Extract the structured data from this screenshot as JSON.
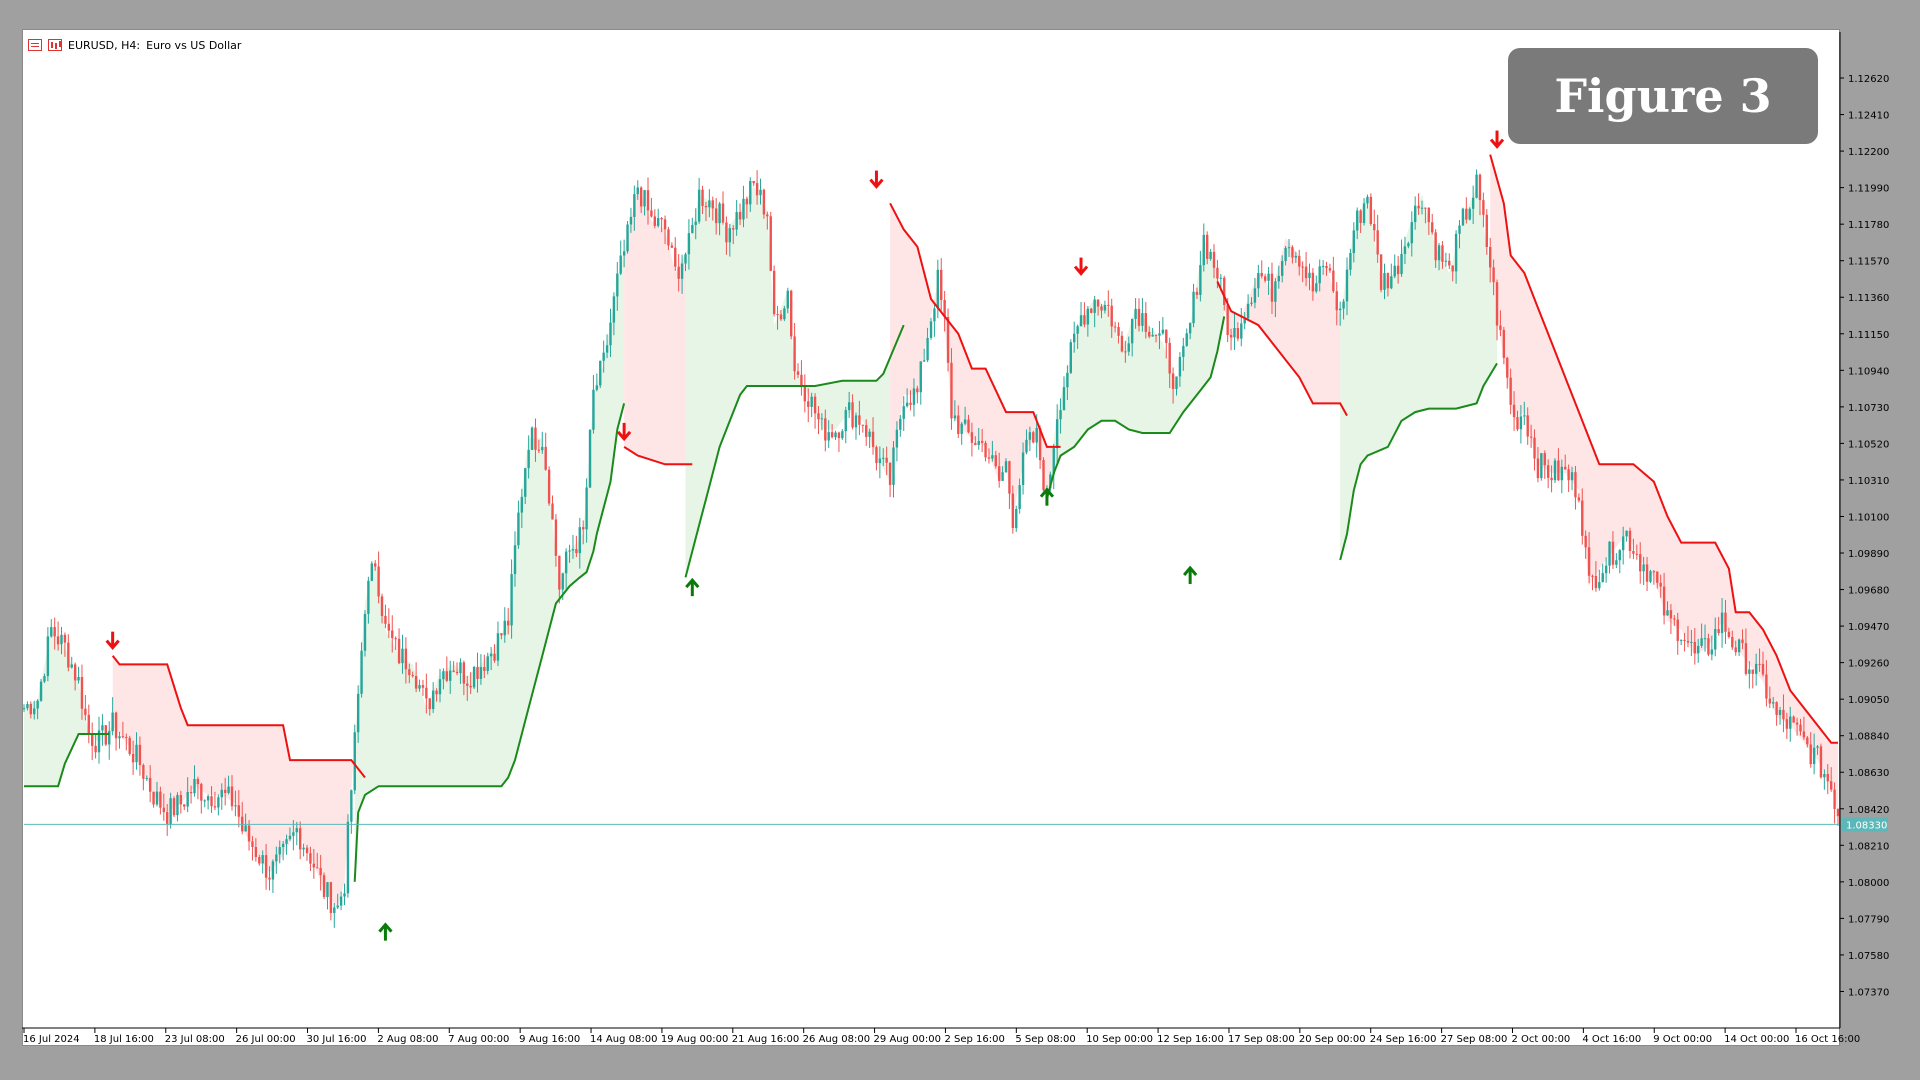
{
  "header": {
    "symbol": "EURUSD, H4:",
    "description": "Euro vs US Dollar"
  },
  "badge": {
    "text": "Figure 3"
  },
  "colors": {
    "up_candle": "#26a69a",
    "down_candle": "#ef5350",
    "supertrend_up": "#1a8a1a",
    "supertrend_down": "#ee1111",
    "fill_up": "#e6f5e6",
    "fill_down": "#ffe6e6",
    "arrow_up": "#0a7a0a",
    "arrow_down": "#ee1111",
    "price_line": "#5cb8b8"
  },
  "chart_data": {
    "type": "candlestick",
    "title": "EURUSD, H4: Euro vs US Dollar",
    "ylim": [
      1.0716,
      1.1285
    ],
    "y_ticks": [
      "1.12620",
      "1.12410",
      "1.12200",
      "1.11990",
      "1.11780",
      "1.11570",
      "1.11360",
      "1.11150",
      "1.10940",
      "1.10730",
      "1.10520",
      "1.10310",
      "1.10100",
      "1.09890",
      "1.09680",
      "1.09470",
      "1.09260",
      "1.09050",
      "1.08840",
      "1.08630",
      "1.08420",
      "1.08210",
      "1.08000",
      "1.07790",
      "1.07580",
      "1.07370"
    ],
    "x_ticks": [
      "16 Jul 2024",
      "18 Jul 16:00",
      "23 Jul 08:00",
      "26 Jul 00:00",
      "30 Jul 16:00",
      "2 Aug 08:00",
      "7 Aug 00:00",
      "9 Aug 16:00",
      "14 Aug 08:00",
      "19 Aug 00:00",
      "21 Aug 16:00",
      "26 Aug 08:00",
      "29 Aug 00:00",
      "2 Sep 16:00",
      "5 Sep 08:00",
      "10 Sep 00:00",
      "12 Sep 16:00",
      "17 Sep 08:00",
      "20 Sep 00:00",
      "24 Sep 16:00",
      "27 Sep 08:00",
      "2 Oct 00:00",
      "4 Oct 16:00",
      "9 Oct 00:00",
      "14 Oct 00:00",
      "16 Oct 16:00"
    ],
    "current_price": {
      "value": 1.0833,
      "label": "1.08330"
    },
    "close_path": [
      [
        0,
        1.09
      ],
      [
        4,
        1.0905
      ],
      [
        8,
        1.0945
      ],
      [
        12,
        1.0935
      ],
      [
        16,
        1.0915
      ],
      [
        19,
        1.0885
      ],
      [
        22,
        1.088
      ],
      [
        26,
        1.089
      ],
      [
        30,
        1.088
      ],
      [
        34,
        1.0868
      ],
      [
        38,
        1.085
      ],
      [
        42,
        1.084
      ],
      [
        46,
        1.0845
      ],
      [
        50,
        1.0855
      ],
      [
        54,
        1.085
      ],
      [
        58,
        1.085
      ],
      [
        62,
        1.0845
      ],
      [
        64,
        1.083
      ],
      [
        68,
        1.0818
      ],
      [
        72,
        1.0805
      ],
      [
        76,
        1.0815
      ],
      [
        80,
        1.083
      ],
      [
        84,
        1.0815
      ],
      [
        88,
        1.0795
      ],
      [
        92,
        1.0785
      ],
      [
        94,
        1.08
      ],
      [
        97,
        1.088
      ],
      [
        100,
        1.096
      ],
      [
        103,
        1.0985
      ],
      [
        106,
        1.0945
      ],
      [
        110,
        1.093
      ],
      [
        114,
        1.0925
      ],
      [
        118,
        1.09
      ],
      [
        122,
        1.092
      ],
      [
        126,
        1.0925
      ],
      [
        130,
        1.0918
      ],
      [
        134,
        1.0925
      ],
      [
        138,
        1.0935
      ],
      [
        142,
        1.095
      ],
      [
        145,
        1.101
      ],
      [
        148,
        1.1055
      ],
      [
        152,
        1.1055
      ],
      [
        154,
        1.1025
      ],
      [
        157,
        1.097
      ],
      [
        160,
        1.099
      ],
      [
        164,
        1.1
      ],
      [
        167,
        1.108
      ],
      [
        170,
        1.1098
      ],
      [
        174,
        1.1145
      ],
      [
        177,
        1.117
      ],
      [
        180,
        1.12
      ],
      [
        184,
        1.118
      ],
      [
        188,
        1.1175
      ],
      [
        191,
        1.115
      ],
      [
        195,
        1.1165
      ],
      [
        198,
        1.1195
      ],
      [
        202,
        1.119
      ],
      [
        206,
        1.1175
      ],
      [
        210,
        1.1185
      ],
      [
        214,
        1.12
      ],
      [
        218,
        1.1185
      ],
      [
        220,
        1.112
      ],
      [
        224,
        1.114
      ],
      [
        226,
        1.1095
      ],
      [
        230,
        1.108
      ],
      [
        234,
        1.106
      ],
      [
        238,
        1.106
      ],
      [
        242,
        1.107
      ],
      [
        246,
        1.1065
      ],
      [
        250,
        1.1045
      ],
      [
        254,
        1.103
      ],
      [
        258,
        1.108
      ],
      [
        262,
        1.108
      ],
      [
        265,
        1.1115
      ],
      [
        268,
        1.1145
      ],
      [
        270,
        1.112
      ],
      [
        272,
        1.107
      ],
      [
        275,
        1.106
      ],
      [
        278,
        1.1055
      ],
      [
        282,
        1.105
      ],
      [
        286,
        1.103
      ],
      [
        288,
        1.104
      ],
      [
        290,
        1.101
      ],
      [
        294,
        1.105
      ],
      [
        297,
        1.1055
      ],
      [
        300,
        1.102
      ],
      [
        303,
        1.107
      ],
      [
        306,
        1.1095
      ],
      [
        310,
        1.1125
      ],
      [
        314,
        1.1135
      ],
      [
        318,
        1.113
      ],
      [
        322,
        1.1105
      ],
      [
        326,
        1.113
      ],
      [
        330,
        1.112
      ],
      [
        334,
        1.111
      ],
      [
        338,
        1.1085
      ],
      [
        342,
        1.112
      ],
      [
        346,
        1.117
      ],
      [
        350,
        1.115
      ],
      [
        354,
        1.111
      ],
      [
        358,
        1.113
      ],
      [
        362,
        1.115
      ],
      [
        366,
        1.114
      ],
      [
        370,
        1.117
      ],
      [
        374,
        1.116
      ],
      [
        378,
        1.114
      ],
      [
        382,
        1.1155
      ],
      [
        386,
        1.1125
      ],
      [
        390,
        1.1175
      ],
      [
        394,
        1.1195
      ],
      [
        398,
        1.1145
      ],
      [
        402,
        1.115
      ],
      [
        406,
        1.1175
      ],
      [
        410,
        1.1195
      ],
      [
        414,
        1.1165
      ],
      [
        418,
        1.115
      ],
      [
        422,
        1.118
      ],
      [
        426,
        1.12
      ],
      [
        430,
        1.1155
      ],
      [
        432,
        1.1125
      ],
      [
        434,
        1.11
      ],
      [
        437,
        1.1065
      ],
      [
        440,
        1.107
      ],
      [
        444,
        1.104
      ],
      [
        448,
        1.1035
      ],
      [
        452,
        1.1035
      ],
      [
        456,
        1.1025
      ],
      [
        459,
        1.097
      ],
      [
        462,
        1.098
      ],
      [
        466,
        1.099
      ],
      [
        470,
        1.1
      ],
      [
        474,
        1.0985
      ],
      [
        478,
        1.0975
      ],
      [
        482,
        1.095
      ],
      [
        486,
        1.0945
      ],
      [
        490,
        1.093
      ],
      [
        494,
        1.0935
      ],
      [
        498,
        1.095
      ],
      [
        502,
        1.0935
      ],
      [
        506,
        1.0925
      ],
      [
        510,
        1.0915
      ],
      [
        514,
        1.0895
      ],
      [
        518,
        1.089
      ],
      [
        522,
        1.088
      ],
      [
        526,
        1.087
      ],
      [
        530,
        1.0855
      ],
      [
        532,
        1.084
      ]
    ],
    "supertrend_segments": [
      {
        "trend": "up",
        "start": 0,
        "end": 26,
        "points": [
          [
            0,
            1.0855
          ],
          [
            10,
            1.0855
          ],
          [
            12,
            1.0868
          ],
          [
            16,
            1.0885
          ],
          [
            25,
            1.0885
          ]
        ]
      },
      {
        "trend": "down",
        "start": 26,
        "end": 106,
        "points": [
          [
            26,
            1.093
          ],
          [
            28,
            1.0925
          ],
          [
            42,
            1.0925
          ],
          [
            46,
            1.09
          ],
          [
            48,
            1.089
          ],
          [
            76,
            1.089
          ],
          [
            78,
            1.087
          ],
          [
            96,
            1.087
          ],
          [
            100,
            1.086
          ]
        ]
      },
      {
        "trend": "up",
        "start": 97,
        "end": 176,
        "points": [
          [
            97,
            1.08
          ],
          [
            98,
            1.084
          ],
          [
            100,
            1.085
          ],
          [
            104,
            1.0855
          ],
          [
            140,
            1.0855
          ],
          [
            142,
            1.086
          ],
          [
            144,
            1.087
          ],
          [
            148,
            1.09
          ],
          [
            152,
            1.093
          ],
          [
            156,
            1.096
          ],
          [
            160,
            1.097
          ],
          [
            163,
            1.0975
          ],
          [
            165,
            1.0978
          ],
          [
            167,
            1.099
          ],
          [
            168,
            1.1
          ],
          [
            172,
            1.103
          ],
          [
            174,
            1.106
          ],
          [
            176,
            1.1075
          ]
        ]
      },
      {
        "trend": "down",
        "start": 176,
        "end": 196,
        "points": [
          [
            176,
            1.105
          ],
          [
            180,
            1.1045
          ],
          [
            188,
            1.104
          ],
          [
            196,
            1.104
          ]
        ]
      },
      {
        "trend": "up",
        "start": 194,
        "end": 258,
        "points": [
          [
            194,
            1.0975
          ],
          [
            196,
            1.099
          ],
          [
            198,
            1.1005
          ],
          [
            200,
            1.102
          ],
          [
            204,
            1.105
          ],
          [
            206,
            1.106
          ],
          [
            210,
            1.108
          ],
          [
            212,
            1.1085
          ],
          [
            220,
            1.1085
          ],
          [
            232,
            1.1085
          ],
          [
            240,
            1.1088
          ],
          [
            250,
            1.1088
          ],
          [
            252,
            1.1092
          ],
          [
            258,
            1.112
          ]
        ]
      },
      {
        "trend": "down",
        "start": 254,
        "end": 304,
        "points": [
          [
            254,
            1.119
          ],
          [
            258,
            1.1175
          ],
          [
            262,
            1.1165
          ],
          [
            266,
            1.1135
          ],
          [
            270,
            1.1125
          ],
          [
            274,
            1.1115
          ],
          [
            278,
            1.1095
          ],
          [
            282,
            1.1095
          ],
          [
            288,
            1.107
          ],
          [
            296,
            1.107
          ],
          [
            300,
            1.105
          ],
          [
            304,
            1.105
          ]
        ]
      },
      {
        "trend": "up",
        "start": 300,
        "end": 352,
        "points": [
          [
            300,
            1.102
          ],
          [
            302,
            1.1035
          ],
          [
            304,
            1.1045
          ],
          [
            308,
            1.105
          ],
          [
            312,
            1.106
          ],
          [
            316,
            1.1065
          ],
          [
            320,
            1.1065
          ],
          [
            324,
            1.106
          ],
          [
            328,
            1.1058
          ],
          [
            336,
            1.1058
          ],
          [
            340,
            1.107
          ],
          [
            344,
            1.108
          ],
          [
            348,
            1.109
          ],
          [
            350,
            1.1105
          ],
          [
            352,
            1.1125
          ]
        ]
      },
      {
        "trend": "down",
        "start": 350,
        "end": 388,
        "points": [
          [
            350,
            1.1145
          ],
          [
            354,
            1.1128
          ],
          [
            362,
            1.112
          ],
          [
            370,
            1.11
          ],
          [
            374,
            1.109
          ],
          [
            378,
            1.1075
          ],
          [
            382,
            1.1075
          ],
          [
            386,
            1.1075
          ],
          [
            388,
            1.1068
          ]
        ]
      },
      {
        "trend": "up",
        "start": 386,
        "end": 432,
        "points": [
          [
            386,
            1.0985
          ],
          [
            388,
            1.1
          ],
          [
            390,
            1.1025
          ],
          [
            392,
            1.104
          ],
          [
            394,
            1.1045
          ],
          [
            400,
            1.105
          ],
          [
            404,
            1.1065
          ],
          [
            408,
            1.107
          ],
          [
            412,
            1.1072
          ],
          [
            420,
            1.1072
          ],
          [
            426,
            1.1075
          ],
          [
            428,
            1.1085
          ],
          [
            432,
            1.1098
          ]
        ]
      },
      {
        "trend": "down",
        "start": 430,
        "end": 532,
        "points": [
          [
            430,
            1.1218
          ],
          [
            434,
            1.119
          ],
          [
            436,
            1.116
          ],
          [
            440,
            1.115
          ],
          [
            444,
            1.113
          ],
          [
            448,
            1.111
          ],
          [
            452,
            1.109
          ],
          [
            456,
            1.107
          ],
          [
            460,
            1.105
          ],
          [
            462,
            1.104
          ],
          [
            472,
            1.104
          ],
          [
            478,
            1.103
          ],
          [
            482,
            1.101
          ],
          [
            486,
            1.0995
          ],
          [
            496,
            1.0995
          ],
          [
            500,
            1.098
          ],
          [
            502,
            1.0955
          ],
          [
            506,
            1.0955
          ],
          [
            510,
            1.0945
          ],
          [
            514,
            1.093
          ],
          [
            518,
            1.091
          ],
          [
            522,
            1.09
          ],
          [
            526,
            1.089
          ],
          [
            530,
            1.088
          ],
          [
            532,
            1.088
          ]
        ]
      }
    ],
    "signals": [
      {
        "type": "sell",
        "x": 26,
        "y": 1.093
      },
      {
        "type": "buy",
        "x": 106,
        "y": 1.078
      },
      {
        "type": "sell",
        "x": 176,
        "y": 1.105
      },
      {
        "type": "buy",
        "x": 196,
        "y": 1.0978
      },
      {
        "type": "sell",
        "x": 250,
        "y": 1.1195
      },
      {
        "type": "buy",
        "x": 300,
        "y": 1.103
      },
      {
        "type": "sell",
        "x": 310,
        "y": 1.1145
      },
      {
        "type": "buy",
        "x": 342,
        "y": 1.0985
      },
      {
        "type": "sell",
        "x": 432,
        "y": 1.1218
      }
    ],
    "x_count": 533
  }
}
